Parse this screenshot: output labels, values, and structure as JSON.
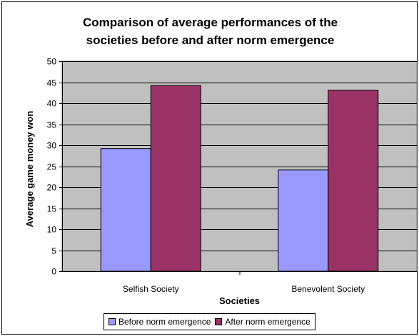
{
  "chart_data": {
    "type": "bar",
    "title": [
      "Comparison of average performances of the",
      "societies before and after norm emergence"
    ],
    "xlabel": "Societies",
    "ylabel": "Average game money won",
    "categories": [
      "Selfish Society",
      "Benevolent Society"
    ],
    "series": [
      {
        "name": "Before norm emergence",
        "values": [
          29.2,
          24.1
        ],
        "color": "#9999ff"
      },
      {
        "name": "After norm emergence",
        "values": [
          44.2,
          43.1
        ],
        "color": "#993366"
      }
    ],
    "ylim": [
      0,
      50
    ],
    "yticks": [
      0,
      5,
      10,
      15,
      20,
      25,
      30,
      35,
      40,
      45,
      50
    ],
    "grid": true,
    "plot_background": "#c0c0c0",
    "legend_position": "bottom"
  }
}
